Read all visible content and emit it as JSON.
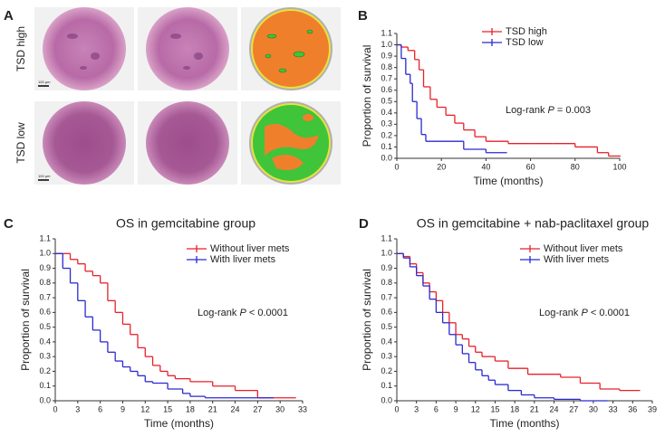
{
  "panel_a": {
    "label": "A",
    "rows": [
      "TSD high",
      "TSD low"
    ],
    "scale_bar": "100 µm"
  },
  "chart_data": [
    {
      "type": "step",
      "panel_label": "B",
      "xlabel": "Time (months)",
      "ylabel": "Proportion of survival",
      "annotation": {
        "prefix": "Log-rank ",
        "stat": "P",
        "suffix": " = 0.003"
      },
      "xlim": [
        0,
        100
      ],
      "xticks": [
        0,
        20,
        40,
        60,
        80,
        100
      ],
      "ylim": [
        0,
        1.1
      ],
      "yticks": [
        {
          "value": 0,
          "label": "0.0"
        },
        0.1,
        0.2,
        0.3,
        0.4,
        0.5,
        0.6,
        0.7,
        0.8,
        0.9,
        {
          "value": 1,
          "label": "1.0"
        },
        1.1
      ],
      "legend": "top-right",
      "series": [
        {
          "name": "TSD high",
          "color": "#e8202a",
          "x": [
            0,
            2,
            5,
            8,
            10,
            12,
            15,
            18,
            22,
            26,
            30,
            35,
            40,
            50,
            60,
            70,
            80,
            90,
            95,
            100
          ],
          "values": [
            1.0,
            0.98,
            0.95,
            0.87,
            0.78,
            0.63,
            0.52,
            0.45,
            0.38,
            0.31,
            0.25,
            0.19,
            0.15,
            0.13,
            0.13,
            0.13,
            0.1,
            0.05,
            0.02,
            0.02
          ]
        },
        {
          "name": "TSD low",
          "color": "#2a2ad0",
          "x": [
            0,
            2,
            4,
            6,
            7,
            9,
            11,
            13,
            30,
            40,
            49
          ],
          "values": [
            1.0,
            0.88,
            0.74,
            0.66,
            0.5,
            0.35,
            0.21,
            0.15,
            0.08,
            0.05,
            0.05
          ]
        }
      ]
    },
    {
      "type": "step",
      "panel_label": "C",
      "title": "OS in gemcitabine group",
      "xlabel": "Time (months)",
      "ylabel": "Proportion of survival",
      "annotation": {
        "prefix": "Log-rank ",
        "stat": "P",
        "suffix": " < 0.0001"
      },
      "xlim": [
        0,
        33
      ],
      "xticks": [
        0,
        3,
        6,
        9,
        12,
        15,
        18,
        21,
        24,
        27,
        30,
        33
      ],
      "ylim": [
        0,
        1.1
      ],
      "yticks": [
        {
          "value": 0,
          "label": "0.0"
        },
        0.1,
        0.2,
        0.3,
        0.4,
        0.5,
        0.6,
        0.7,
        0.8,
        0.9,
        {
          "value": 1,
          "label": "1.0"
        },
        1.1
      ],
      "legend": "top-right",
      "series": [
        {
          "name": "Without liver mets",
          "color": "#e8202a",
          "x": [
            0,
            1,
            2,
            3,
            4,
            5,
            6,
            7,
            8,
            9,
            10,
            11,
            12,
            13,
            14,
            15,
            16,
            18,
            21,
            24,
            27,
            32
          ],
          "values": [
            1.0,
            1.0,
            0.96,
            0.93,
            0.88,
            0.85,
            0.8,
            0.68,
            0.6,
            0.52,
            0.45,
            0.36,
            0.3,
            0.24,
            0.2,
            0.17,
            0.15,
            0.13,
            0.1,
            0.07,
            0.02,
            0.02
          ]
        },
        {
          "name": "With liver mets",
          "color": "#2a2ad0",
          "x": [
            0,
            1,
            2,
            3,
            4,
            5,
            6,
            7,
            8,
            9,
            10,
            11,
            12,
            13,
            15,
            17,
            18,
            20,
            27,
            29
          ],
          "values": [
            1.0,
            0.9,
            0.8,
            0.68,
            0.57,
            0.48,
            0.4,
            0.33,
            0.27,
            0.23,
            0.2,
            0.17,
            0.13,
            0.12,
            0.08,
            0.05,
            0.03,
            0.02,
            0.02,
            0.02
          ]
        }
      ]
    },
    {
      "type": "step",
      "panel_label": "D",
      "title": "OS in gemcitabine + nab-paclitaxel group",
      "xlabel": "Time (months)",
      "ylabel": "Proportion of survival",
      "annotation": {
        "prefix": "Log-rank ",
        "stat": "P",
        "suffix": " < 0.0001"
      },
      "xlim": [
        0,
        39
      ],
      "xticks": [
        0,
        3,
        6,
        9,
        12,
        15,
        18,
        21,
        24,
        27,
        30,
        33,
        36,
        39
      ],
      "ylim": [
        0,
        1.1
      ],
      "yticks": [
        {
          "value": 0,
          "label": "0.0"
        },
        0.1,
        0.2,
        0.3,
        0.4,
        0.5,
        0.6,
        0.7,
        0.8,
        0.9,
        {
          "value": 1,
          "label": "1.0"
        },
        1.1
      ],
      "legend": "top-right",
      "series": [
        {
          "name": "Without liver mets",
          "color": "#e8202a",
          "x": [
            0,
            1,
            2,
            3,
            4,
            5,
            6,
            7,
            8,
            9,
            10,
            11,
            12,
            13,
            15,
            17,
            20,
            25,
            28,
            31,
            34,
            37
          ],
          "values": [
            1.0,
            0.98,
            0.93,
            0.87,
            0.8,
            0.74,
            0.68,
            0.6,
            0.53,
            0.45,
            0.42,
            0.37,
            0.33,
            0.3,
            0.27,
            0.22,
            0.18,
            0.16,
            0.12,
            0.08,
            0.07,
            0.07
          ]
        },
        {
          "name": "With liver mets",
          "color": "#2a2ad0",
          "x": [
            0,
            1,
            2,
            3,
            4,
            5,
            6,
            7,
            8,
            9,
            10,
            11,
            12,
            13,
            14,
            15,
            17,
            19,
            21,
            24,
            28,
            32
          ],
          "values": [
            1.0,
            0.97,
            0.91,
            0.85,
            0.78,
            0.69,
            0.6,
            0.53,
            0.45,
            0.38,
            0.32,
            0.26,
            0.21,
            0.17,
            0.14,
            0.11,
            0.07,
            0.04,
            0.02,
            0.01,
            0,
            0
          ]
        }
      ]
    }
  ]
}
